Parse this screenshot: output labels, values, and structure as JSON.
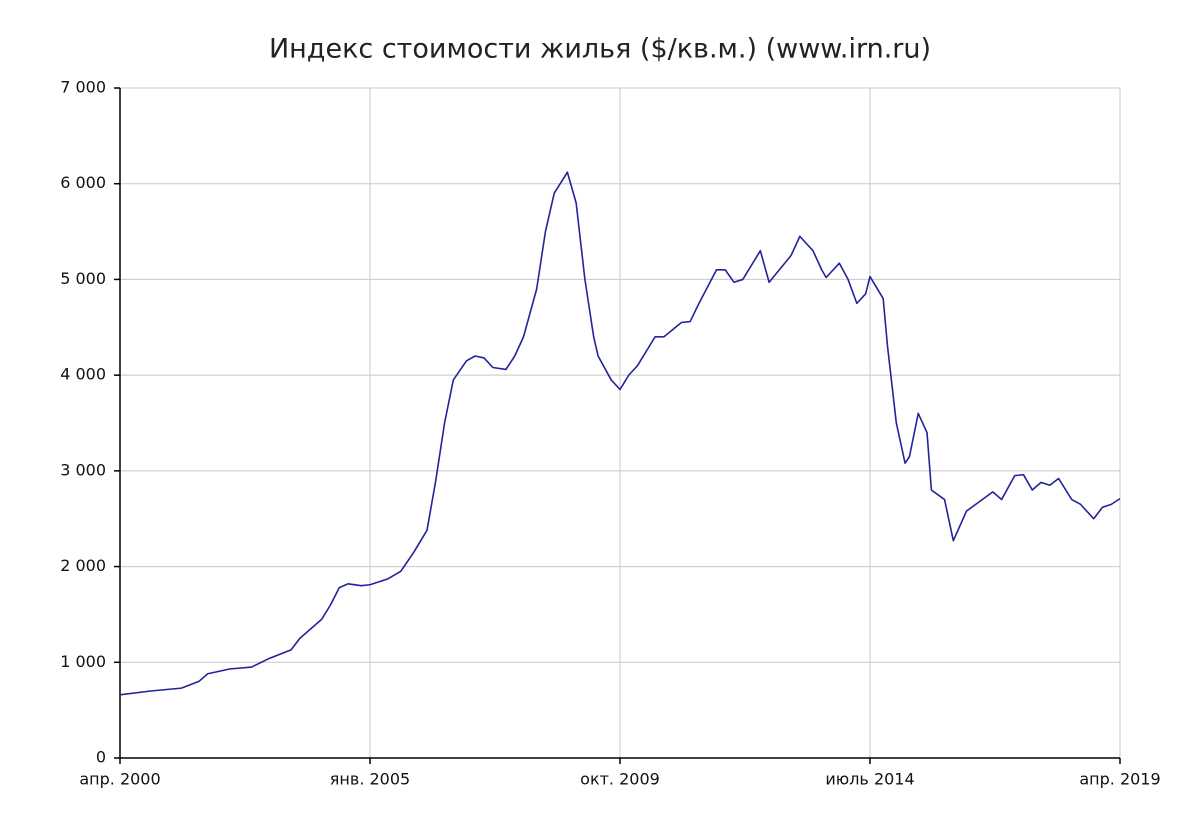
{
  "chart_data": {
    "type": "line",
    "title": "Индекс стоимости жилья ($/кв.м.) (www.irn.ru)",
    "color": "#23239a",
    "grid": true,
    "x": [
      "2000-04",
      "2000-11",
      "2001-06",
      "2001-10",
      "2001-12",
      "2002-05",
      "2002-10",
      "2003-02",
      "2003-07",
      "2003-09",
      "2004-02",
      "2004-04",
      "2004-06",
      "2004-08",
      "2004-11",
      "2005-01",
      "2005-05",
      "2005-08",
      "2005-11",
      "2006-02",
      "2006-04",
      "2006-06",
      "2006-08",
      "2006-11",
      "2007-01",
      "2007-03",
      "2007-05",
      "2007-08",
      "2007-10",
      "2007-12",
      "2008-03",
      "2008-05",
      "2008-07",
      "2008-10",
      "2008-12",
      "2009-02",
      "2009-04",
      "2009-05",
      "2009-08",
      "2009-10",
      "2009-12",
      "2010-02",
      "2010-06",
      "2010-08",
      "2010-12",
      "2011-02",
      "2011-04",
      "2011-08",
      "2011-10",
      "2011-12",
      "2012-02",
      "2012-06",
      "2012-08",
      "2013-01",
      "2013-03",
      "2013-06",
      "2013-08",
      "2013-09",
      "2013-12",
      "2014-02",
      "2014-04",
      "2014-06",
      "2014-07",
      "2014-10",
      "2014-11",
      "2015-01",
      "2015-03",
      "2015-04",
      "2015-06",
      "2015-08",
      "2015-09",
      "2015-12",
      "2016-02",
      "2016-05",
      "2016-08",
      "2016-11",
      "2017-01",
      "2017-04",
      "2017-06",
      "2017-08",
      "2017-10",
      "2017-12",
      "2018-02",
      "2018-05",
      "2018-07",
      "2018-10",
      "2018-12",
      "2019-02",
      "2019-04"
    ],
    "values": [
      660,
      700,
      730,
      800,
      880,
      930,
      950,
      1040,
      1130,
      1250,
      1450,
      1600,
      1780,
      1820,
      1800,
      1810,
      1870,
      1950,
      2150,
      2380,
      2900,
      3500,
      3950,
      4150,
      4200,
      4180,
      4080,
      4060,
      4200,
      4400,
      4900,
      5500,
      5900,
      6120,
      5800,
      5000,
      4400,
      4200,
      3950,
      3850,
      4000,
      4100,
      4400,
      4400,
      4550,
      4560,
      4750,
      5100,
      5100,
      4970,
      5000,
      5300,
      4970,
      5250,
      5450,
      5300,
      5100,
      5020,
      5170,
      5000,
      4750,
      4850,
      5030,
      4800,
      4300,
      3500,
      3080,
      3150,
      3600,
      3400,
      2800,
      2700,
      2270,
      2580,
      2680,
      2780,
      2700,
      2950,
      2960,
      2800,
      2880,
      2850,
      2920,
      2700,
      2650,
      2500,
      2620,
      2650,
      2710
    ],
    "xlim": [
      "2000-04",
      "2019-04"
    ],
    "xticks": [
      {
        "value": "2000-04",
        "label": "апр. 2000"
      },
      {
        "value": "2005-01",
        "label": "янв. 2005"
      },
      {
        "value": "2009-10",
        "label": "окт. 2009"
      },
      {
        "value": "2014-07",
        "label": "июль 2014"
      },
      {
        "value": "2019-04",
        "label": "апр. 2019"
      }
    ],
    "ylim": [
      0,
      7000
    ],
    "yticks": [
      0,
      {
        "value": 1000,
        "label": "1 000"
      },
      {
        "value": 2000,
        "label": "2 000"
      },
      {
        "value": 3000,
        "label": "3 000"
      },
      {
        "value": 4000,
        "label": "4 000"
      },
      {
        "value": 5000,
        "label": "5 000"
      },
      {
        "value": 6000,
        "label": "6 000"
      },
      {
        "value": 7000,
        "label": "7 000"
      }
    ]
  }
}
